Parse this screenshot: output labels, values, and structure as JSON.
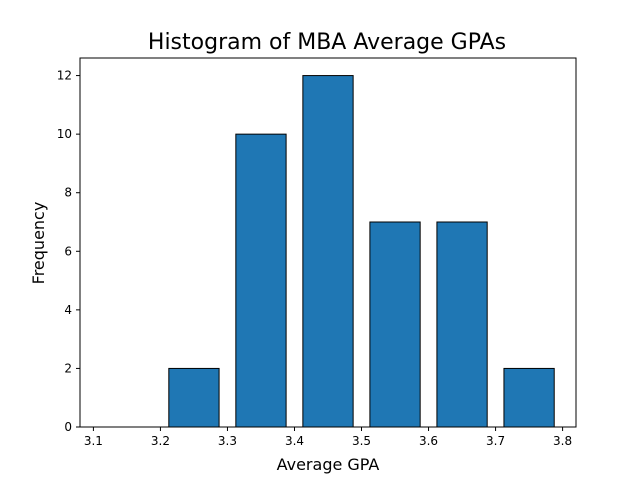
{
  "chart_data": {
    "type": "bar",
    "title": "Histogram of MBA Average GPAs",
    "xlabel": "Average GPA",
    "ylabel": "Frequency",
    "bins": [
      {
        "start": 3.1,
        "end": 3.2,
        "value": 0
      },
      {
        "start": 3.2,
        "end": 3.3,
        "value": 2
      },
      {
        "start": 3.3,
        "end": 3.4,
        "value": 10
      },
      {
        "start": 3.4,
        "end": 3.5,
        "value": 12
      },
      {
        "start": 3.5,
        "end": 3.6,
        "value": 7
      },
      {
        "start": 3.6,
        "end": 3.7,
        "value": 7
      },
      {
        "start": 3.7,
        "end": 3.8,
        "value": 2
      }
    ],
    "xlim": [
      3.08,
      3.82
    ],
    "ylim": [
      0,
      12.6
    ],
    "xticks": [
      "3.1",
      "3.2",
      "3.3",
      "3.4",
      "3.5",
      "3.6",
      "3.7",
      "3.8"
    ],
    "yticks": [
      "0",
      "2",
      "4",
      "6",
      "8",
      "10",
      "12"
    ],
    "bar_color": "#1f77b4",
    "edge_color": "#000000",
    "grid": false
  }
}
